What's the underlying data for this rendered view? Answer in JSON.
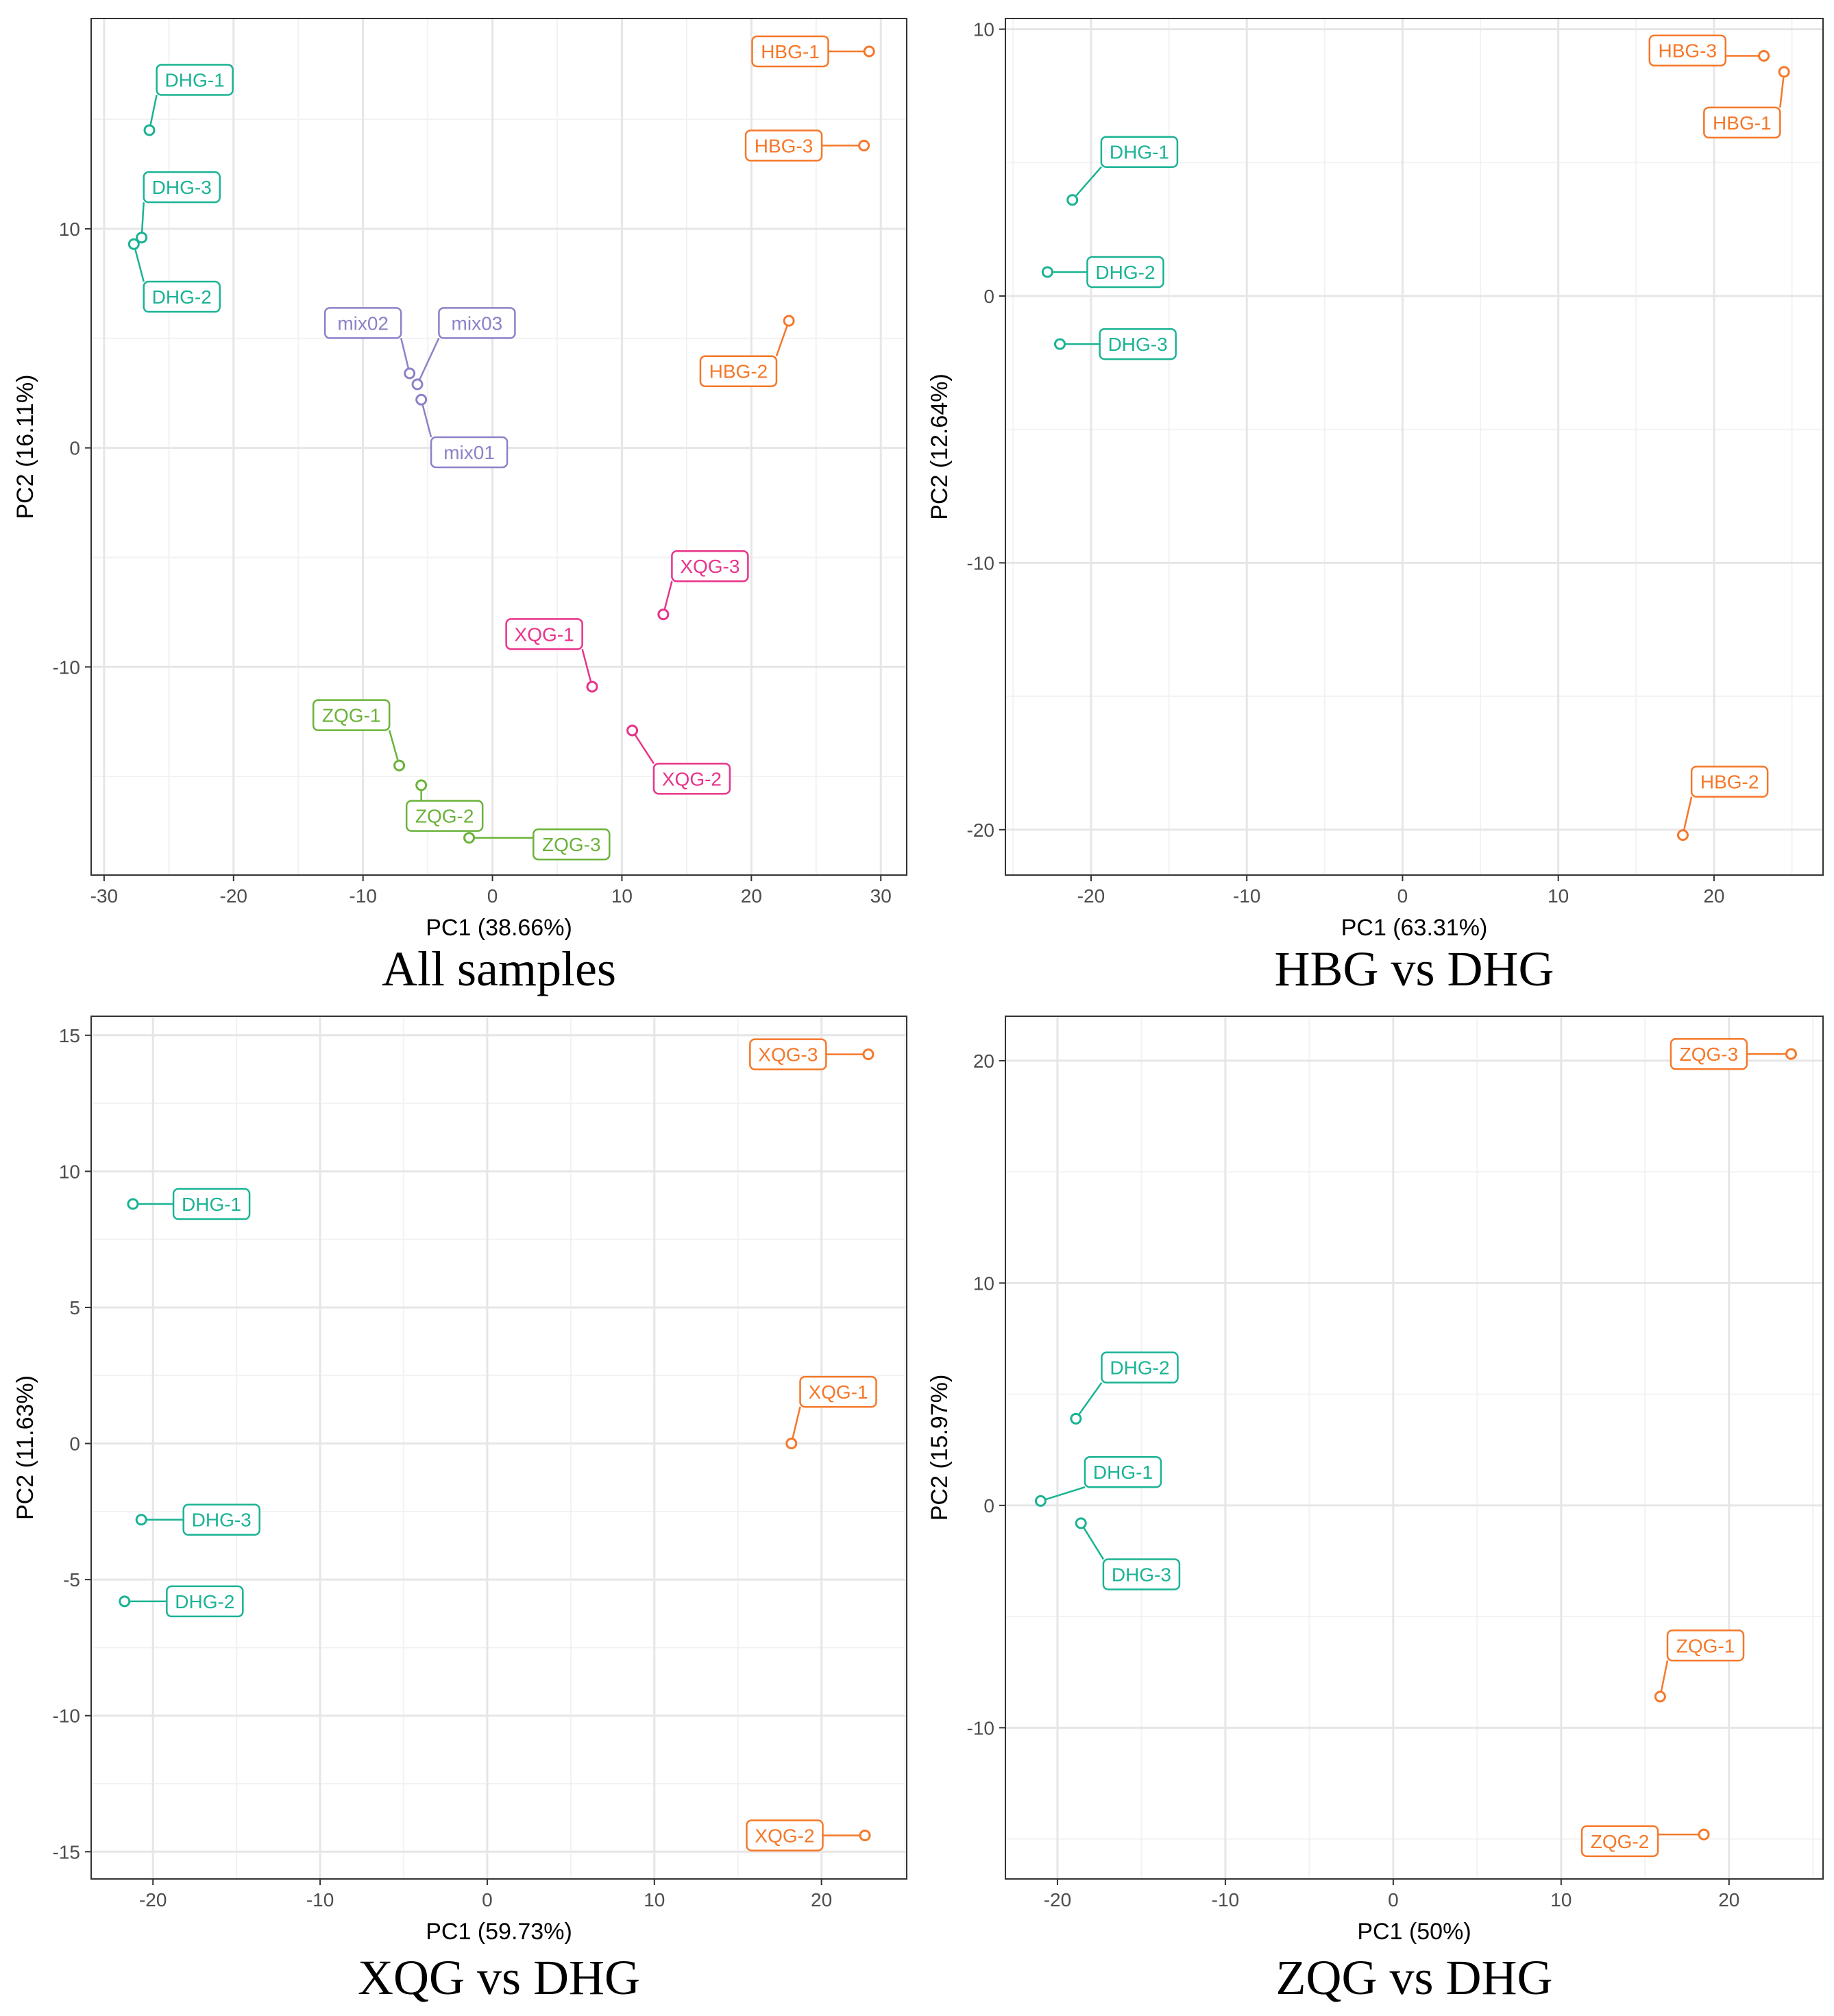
{
  "colors": {
    "dhg": "#1ab394",
    "other": "#f5782a",
    "mix": "#8c82c8",
    "zqg": "#6ab23a",
    "xqg": "#e8338a",
    "grid_major": "#e6e6e6",
    "grid_minor": "#f2f2f2",
    "frame": "#333333",
    "tick_text": "#4d4d4d"
  },
  "chart_data": [
    {
      "type": "scatter",
      "title": "All samples",
      "xlabel": "PC1 (38.66%)",
      "ylabel": "PC2 (16.11%)",
      "xlim": [
        -31,
        32
      ],
      "ylim": [
        -19.5,
        19.6
      ],
      "xticks": [
        -30,
        -20,
        -10,
        0,
        10,
        20,
        30
      ],
      "xtick_labels": [
        "-30",
        "-20",
        "-10",
        "0",
        "10",
        "20",
        "30"
      ],
      "yticks": [
        -10,
        0,
        10
      ],
      "ytick_labels": [
        "-10",
        "0",
        "10"
      ],
      "points": [
        {
          "label": "DHG-1",
          "x": -26.5,
          "y": 14.5,
          "group": "dhg",
          "lx": -23,
          "ly": 16.8
        },
        {
          "label": "DHG-3",
          "x": -27.1,
          "y": 9.6,
          "group": "dhg",
          "lx": -24,
          "ly": 11.9
        },
        {
          "label": "DHG-2",
          "x": -27.7,
          "y": 9.3,
          "group": "dhg",
          "lx": -24,
          "ly": 6.9
        },
        {
          "label": "mix02",
          "x": -6.4,
          "y": 3.4,
          "group": "mix",
          "lx": -10,
          "ly": 5.7
        },
        {
          "label": "mix03",
          "x": -5.8,
          "y": 2.9,
          "group": "mix",
          "lx": -1.2,
          "ly": 5.7
        },
        {
          "label": "mix01",
          "x": -5.5,
          "y": 2.2,
          "group": "mix",
          "lx": -1.8,
          "ly": -0.2
        },
        {
          "label": "HBG-1",
          "x": 29.1,
          "y": 18.1,
          "group": "other",
          "lx": 23.0,
          "ly": 18.1
        },
        {
          "label": "HBG-3",
          "x": 28.7,
          "y": 13.8,
          "group": "other",
          "lx": 22.5,
          "ly": 13.8
        },
        {
          "label": "HBG-2",
          "x": 22.9,
          "y": 5.8,
          "group": "other",
          "lx": 19.0,
          "ly": 3.5
        },
        {
          "label": "XQG-3",
          "x": 13.2,
          "y": -7.6,
          "group": "xqg",
          "lx": 16.8,
          "ly": -5.4
        },
        {
          "label": "XQG-1",
          "x": 7.7,
          "y": -10.9,
          "group": "xqg",
          "lx": 4.0,
          "ly": -8.5
        },
        {
          "label": "XQG-2",
          "x": 10.8,
          "y": -12.9,
          "group": "xqg",
          "lx": 15.4,
          "ly": -15.1
        },
        {
          "label": "ZQG-1",
          "x": -7.2,
          "y": -14.5,
          "group": "zqg",
          "lx": -10.9,
          "ly": -12.2
        },
        {
          "label": "ZQG-2",
          "x": -5.5,
          "y": -15.4,
          "group": "zqg",
          "lx": -3.7,
          "ly": -16.8
        },
        {
          "label": "ZQG-3",
          "x": -1.8,
          "y": -17.8,
          "group": "zqg",
          "lx": 6.1,
          "ly": -18.1
        }
      ]
    },
    {
      "type": "scatter",
      "title": "HBG vs DHG",
      "xlabel": "PC1 (63.31%)",
      "ylabel": "PC2 (12.64%)",
      "xlim": [
        -25.5,
        27
      ],
      "ylim": [
        -21.7,
        10.4
      ],
      "xticks": [
        -20,
        -10,
        0,
        10,
        20
      ],
      "xtick_labels": [
        "-20",
        "-10",
        "0",
        "10",
        "20"
      ],
      "yticks": [
        -20,
        -10,
        0,
        10
      ],
      "ytick_labels": [
        "-20",
        "-10",
        "0",
        "10"
      ],
      "points": [
        {
          "label": "HBG-3",
          "x": 23.2,
          "y": 9.0,
          "group": "other",
          "lx": 18.3,
          "ly": 9.2
        },
        {
          "label": "HBG-1",
          "x": 24.5,
          "y": 8.4,
          "group": "other",
          "lx": 21.8,
          "ly": 6.5
        },
        {
          "label": "DHG-1",
          "x": -21.2,
          "y": 3.6,
          "group": "dhg",
          "lx": -16.9,
          "ly": 5.4
        },
        {
          "label": "DHG-2",
          "x": -22.8,
          "y": 0.9,
          "group": "dhg",
          "lx": -17.8,
          "ly": 0.9
        },
        {
          "label": "DHG-3",
          "x": -22.0,
          "y": -1.8,
          "group": "dhg",
          "lx": -17.0,
          "ly": -1.8
        },
        {
          "label": "HBG-2",
          "x": 18.0,
          "y": -20.2,
          "group": "other",
          "lx": 21.0,
          "ly": -18.2
        }
      ]
    },
    {
      "type": "scatter",
      "title": "XQG vs DHG",
      "xlabel": "PC1 (59.73%)",
      "ylabel": "PC2 (11.63%)",
      "xlim": [
        -23.7,
        25.1
      ],
      "ylim": [
        -16.0,
        15.7
      ],
      "xticks": [
        -20,
        -10,
        0,
        10,
        20
      ],
      "xtick_labels": [
        "-20",
        "-10",
        "0",
        "10",
        "20"
      ],
      "yticks": [
        -15,
        -10,
        -5,
        0,
        5,
        10,
        15
      ],
      "ytick_labels": [
        "-15",
        "-10",
        "-5",
        "0",
        "5",
        "10",
        "15"
      ],
      "points": [
        {
          "label": "XQG-3",
          "x": 22.8,
          "y": 14.3,
          "group": "other",
          "lx": 18.0,
          "ly": 14.3
        },
        {
          "label": "DHG-1",
          "x": -21.2,
          "y": 8.8,
          "group": "dhg",
          "lx": -16.5,
          "ly": 8.8
        },
        {
          "label": "XQG-1",
          "x": 18.2,
          "y": 0.0,
          "group": "other",
          "lx": 21.0,
          "ly": 1.9
        },
        {
          "label": "DHG-3",
          "x": -20.7,
          "y": -2.8,
          "group": "dhg",
          "lx": -15.9,
          "ly": -2.8
        },
        {
          "label": "DHG-2",
          "x": -21.7,
          "y": -5.8,
          "group": "dhg",
          "lx": -16.9,
          "ly": -5.8
        },
        {
          "label": "XQG-2",
          "x": 22.6,
          "y": -14.4,
          "group": "other",
          "lx": 17.8,
          "ly": -14.4
        }
      ]
    },
    {
      "type": "scatter",
      "title": "ZQG vs DHG",
      "xlabel": "PC1 (50%)",
      "ylabel": "PC2 (15.97%)",
      "xlim": [
        -23.1,
        25.6
      ],
      "ylim": [
        -16.8,
        22.0
      ],
      "xticks": [
        -20,
        -10,
        0,
        10,
        20
      ],
      "xtick_labels": [
        "-20",
        "-10",
        "0",
        "10",
        "20"
      ],
      "yticks": [
        -10,
        0,
        10,
        20
      ],
      "ytick_labels": [
        "-10",
        "0",
        "10",
        "20"
      ],
      "points": [
        {
          "label": "ZQG-3",
          "x": 23.7,
          "y": 20.3,
          "group": "other",
          "lx": 18.8,
          "ly": 20.3
        },
        {
          "label": "DHG-2",
          "x": -18.9,
          "y": 3.9,
          "group": "dhg",
          "lx": -15.1,
          "ly": 6.2
        },
        {
          "label": "DHG-1",
          "x": -21.0,
          "y": 0.2,
          "group": "dhg",
          "lx": -16.1,
          "ly": 1.5
        },
        {
          "label": "DHG-3",
          "x": -18.6,
          "y": -0.8,
          "group": "dhg",
          "lx": -15.0,
          "ly": -3.1
        },
        {
          "label": "ZQG-1",
          "x": 15.9,
          "y": -8.6,
          "group": "other",
          "lx": 18.6,
          "ly": -6.3
        },
        {
          "label": "ZQG-2",
          "x": 18.5,
          "y": -14.8,
          "group": "other",
          "lx": 13.5,
          "ly": -15.1
        }
      ]
    }
  ]
}
